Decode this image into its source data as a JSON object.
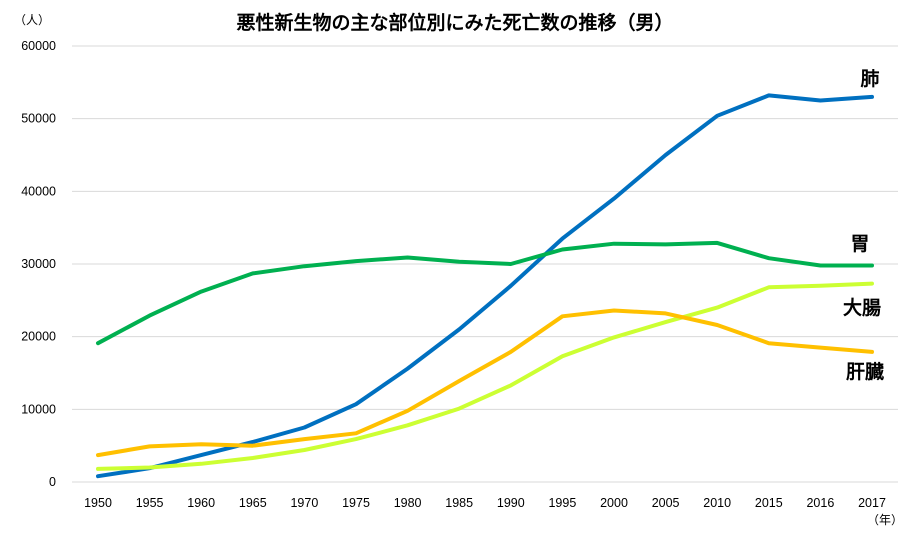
{
  "chart_data": {
    "type": "line",
    "title": "悪性新生物の主な部位別にみた死亡数の推移（男）",
    "y_unit": "（人）",
    "x_unit": "（年）",
    "categories": [
      "1950",
      "1955",
      "1960",
      "1965",
      "1970",
      "1975",
      "1980",
      "1985",
      "1990",
      "1995",
      "2000",
      "2005",
      "2010",
      "2015",
      "2016",
      "2017"
    ],
    "ylim": [
      0,
      60000
    ],
    "yticks": [
      0,
      10000,
      20000,
      30000,
      40000,
      50000,
      60000
    ],
    "grid": true,
    "series": [
      {
        "name": "肺",
        "color": "#0070c0",
        "values": [
          800,
          1900,
          3700,
          5500,
          7500,
          10700,
          15600,
          21000,
          27000,
          33500,
          39000,
          45000,
          50400,
          53200,
          52500,
          53000
        ]
      },
      {
        "name": "胃",
        "color": "#00b050",
        "values": [
          19100,
          22900,
          26200,
          28700,
          29700,
          30400,
          30900,
          30300,
          30000,
          32000,
          32800,
          32700,
          32900,
          30800,
          29800,
          29800
        ]
      },
      {
        "name": "大腸",
        "color": "#ccff33",
        "values": [
          1800,
          2000,
          2500,
          3300,
          4400,
          5900,
          7800,
          10100,
          13300,
          17300,
          19900,
          22000,
          24000,
          26800,
          27000,
          27300
        ]
      },
      {
        "name": "肝臓",
        "color": "#ffc000",
        "values": [
          3700,
          4900,
          5200,
          5000,
          5900,
          6700,
          9800,
          13900,
          17900,
          22800,
          23600,
          23200,
          21600,
          19100,
          18500,
          17900
        ]
      }
    ]
  }
}
